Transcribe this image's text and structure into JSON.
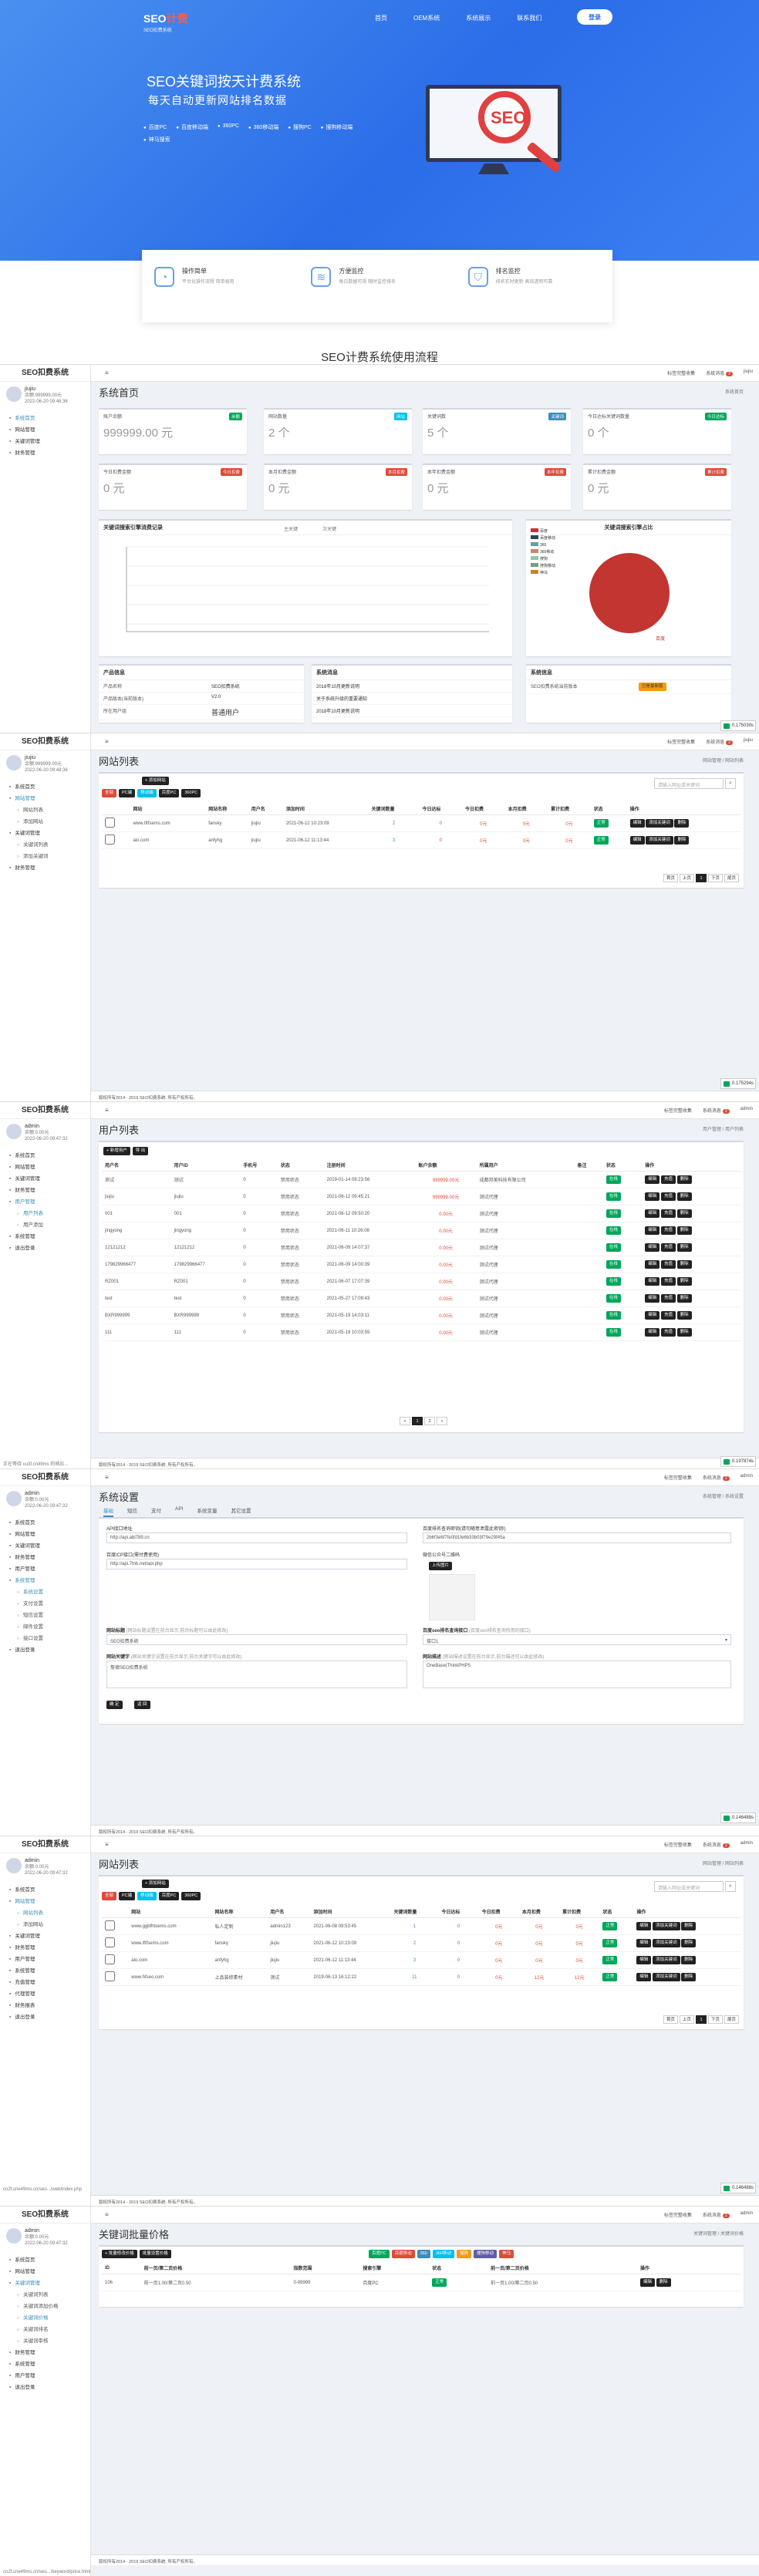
{
  "landing": {
    "logo_main": "SEO",
    "logo_accent": "计费",
    "logo_sub": "SEO扣费系统",
    "nav": [
      "首页",
      "OEM系统",
      "系统展示",
      "联系我们"
    ],
    "login_button": "登录",
    "title": "SEO关键词按天计费系统",
    "subtitle": "每天自动更新网站排名数据",
    "features": [
      "百度PC",
      "百度移动端",
      "360PC",
      "360移动端",
      "搜狗PC",
      "搜狗移动端",
      "神马搜索"
    ],
    "seo_text": "SEO",
    "services": [
      {
        "title": "操作简单",
        "desc": "平台化操作流程 简单易用",
        "icon": "gauge-icon"
      },
      {
        "title": "方便监控",
        "desc": "每日数据可视 随时监控排名",
        "icon": "layers-icon"
      },
      {
        "title": "排名监控",
        "desc": "排名实时更新 高效透明可靠",
        "icon": "shield-icon"
      }
    ],
    "flow_title": "SEO计费系统使用流程"
  },
  "common": {
    "brand": "SEO扣费系统",
    "footer": "版权所有2014 - 2019 SEO扣费系统. 所有产权所有。",
    "chip_time": "0.040266s",
    "user_status": "在线",
    "menu_main": [
      "系统首页",
      "网站管理",
      "关键词管理",
      "财务管理",
      "用户管理",
      "系统管理",
      "退出登录"
    ]
  },
  "p1": {
    "user": "jiujiu",
    "user_info": "余额:999999.00元",
    "user_date": "2022-06-20 09:48:36",
    "menu": [
      "系统首页",
      "网站管理",
      "关键词管理",
      "财务管理"
    ],
    "top": [
      "标签完整收集",
      "系统消息",
      "jiujiu"
    ],
    "title": "系统首页",
    "bc": "系统首页",
    "stats": [
      {
        "label": "账户余额",
        "value": "999999.00 元",
        "tag": "余额"
      },
      {
        "label": "网站数量",
        "value": "2 个",
        "tag": "网站"
      },
      {
        "label": "关键词数",
        "value": "5 个",
        "tag": "关键词"
      },
      {
        "label": "今日达标关键词数量",
        "value": "0 个",
        "tag": "今日达标"
      },
      {
        "label": "今日扣费金额",
        "value": "0 元",
        "tag": "今日扣费"
      },
      {
        "label": "本月扣费金额",
        "value": "0 元",
        "tag": "本月扣费"
      },
      {
        "label": "本年扣费金额",
        "value": "0 元",
        "tag": "本年扣费"
      },
      {
        "label": "累计扣费金额",
        "value": "0 元",
        "tag": "累计扣费"
      }
    ],
    "chart_title": "关键词搜索引擎消费记录",
    "chart_legend": [
      "主关键",
      "次关键"
    ],
    "pie_title": "关键词搜索引擎占比",
    "pie_legend": [
      "百度",
      "百度移动",
      "360",
      "360移动",
      "搜狗",
      "搜狗移动",
      "神马"
    ],
    "pie_label": "百度",
    "product_title": "产品信息",
    "product": [
      [
        "产品名称",
        "SEO扣费系统"
      ],
      [
        "产品版本(当前版本)",
        "V2.0"
      ],
      [
        "所在用户组",
        "普通用户"
      ]
    ],
    "msg_title": "系统消息",
    "msgs": [
      "2018年10月更新说明",
      "关于系统升级的重要通知",
      "2018年10月更新说明"
    ],
    "sys_title": "系统信息",
    "sys": [
      [
        "SEO扣费系统当前版本",
        "已是最新版"
      ]
    ],
    "chip": "0.175030s"
  },
  "p2": {
    "user": "jiujiu",
    "user_info": "余额:999999.00元",
    "user_date": "2022-06-20 09:48:36",
    "menu": [
      "系统首页",
      "网站管理",
      "网站列表",
      "添加网站",
      "关键词管理",
      "关键词列表",
      "添加关键词",
      "财务管理"
    ],
    "title": "网站列表",
    "bc": "网站管理 / 网站列表",
    "add_btn": "+ 添加网站",
    "filters": [
      "全部",
      "PC端",
      "移动端",
      "百度PC",
      "360PC"
    ],
    "search_ph": "请输入网址或关键词",
    "cols": [
      "",
      "网站",
      "网站名称",
      "用户名",
      "添加时间",
      "关键词数量",
      "今日达标",
      "今日扣费",
      "本月扣费",
      "累计扣费",
      "状态",
      "操作"
    ],
    "rows": [
      [
        "",
        "www.tftfsems.com",
        "fansky",
        "jiujiu",
        "2021-06-12 10:23:09",
        "2",
        "0",
        "0元",
        "0元",
        "正常"
      ],
      [
        "",
        "aio.com",
        "anfyhg",
        "jiujiu",
        "2021-06-12 11:13:44",
        "3",
        "0",
        "0元",
        "0元",
        "正常"
      ]
    ],
    "row_btns": [
      "编辑",
      "添加关键词",
      "删除"
    ],
    "pages": [
      "首页",
      "上页",
      "1",
      "下页",
      "尾页"
    ],
    "chip": "0.175294s"
  },
  "p3": {
    "user": "admin",
    "user_info": "余额:0.00元",
    "user_date": "2022-06-20 09:47:32",
    "menu": [
      "系统首页",
      "网站管理",
      "关键词管理",
      "财务管理",
      "用户管理",
      "用户列表",
      "用户添加",
      "系统管理",
      "退出登录"
    ],
    "title": "用户列表",
    "bc": "用户管理 / 用户列表",
    "btns": [
      "+ 新增用户",
      "导 出"
    ],
    "cols": [
      "用户名",
      "用户ID",
      "手机号",
      "状态",
      "注册时间",
      "账户余额",
      "所属用户",
      "备注",
      "状态",
      "操作"
    ],
    "rows": [
      [
        "测试",
        "测试",
        "0",
        "禁用状态",
        "2019-01-14 09:23:56",
        "999999.00元",
        "成都邦美科技有限公司"
      ],
      [
        "jiujiu",
        "jiujiu",
        "0",
        "禁用状态",
        "2021-06-12 09:45:21",
        "999999.00元",
        "测试代理"
      ],
      [
        "001",
        "001",
        "0",
        "禁用状态",
        "2021-06-12 09:50:20",
        "0.00元",
        "测试代理"
      ],
      [
        "jingyong",
        "jingyong",
        "0",
        "禁用状态",
        "2021-06-11 10:26:08",
        "0.00元",
        "测试代理"
      ],
      [
        "12121212",
        "12121212",
        "0",
        "禁用状态",
        "2021-06-09 14:07:37",
        "0.00元",
        "测试代理"
      ],
      [
        "179829966477",
        "179829966477",
        "0",
        "禁用状态",
        "2021-06-09 14:00:39",
        "0.00元",
        "测试代理"
      ],
      [
        "RZ001",
        "RZ001",
        "0",
        "禁用状态",
        "2021-06-07 17:07:39",
        "0.00元",
        "测试代理"
      ],
      [
        "test",
        "test",
        "0",
        "禁用状态",
        "2021-05-27 17:09:43",
        "0.00元",
        "测试代理"
      ],
      [
        "BXR999999",
        "BXR999999",
        "0",
        "禁用状态",
        "2021-05-19 14:03:11",
        "0.00元",
        "测试代理"
      ],
      [
        "111",
        "111",
        "0",
        "禁用状态",
        "2021-05-19 10:03:55",
        "0.00元",
        "测试代理"
      ]
    ],
    "row_btns": [
      "编辑",
      "充值",
      "删除"
    ],
    "pages": [
      "«",
      "1",
      "2",
      "»"
    ],
    "status_url": "正在等待 vu3f.cn49ms 的响应...",
    "chip": "0.197874s"
  },
  "p4": {
    "user": "admin",
    "user_info": "余额:0.00元",
    "user_date": "2022-06-20 09:47:32",
    "menu": [
      "系统首页",
      "网站管理",
      "关键词管理",
      "财务管理",
      "用户管理",
      "系统管理",
      "系统设置",
      "支付设置",
      "短信设置",
      "邮件设置",
      "接口设置",
      "退出登录"
    ],
    "title": "系统设置",
    "bc": "系统管理 / 系统设置",
    "tabs": [
      "基础",
      "短信",
      "支付",
      "API",
      "系统变量",
      "其它设置"
    ],
    "f1_label": "API接口地址",
    "f1_value": "http://api.abl789.cn",
    "f2_label": "百度排名查询密钥(请勿随意泄露此密钥!)",
    "f2_value": "2b6f3e6f7fe0fd1fe6b33b03f79e29f45a",
    "f3_label": "百度ICP接口(需付费使用)",
    "f3_value": "http://api.7tnb.net/api.php",
    "f4_label": "微信公众号二维码",
    "upload_btn": "上传图片",
    "f5_label": "网站标题",
    "f5_hint": "(网站标题设置在前台显示,前台标题可以由此修改)",
    "f5_value": "SEO扣费系统",
    "f6_label": "百度seo排名查询接口",
    "f6_hint": "(百度seo排名查询所用的接口)",
    "f6_value": "接口1",
    "f7_label": "网站关键字",
    "f7_hint": "(网站关键字设置在前台显示,前台关键字可以由此修改)",
    "f7_value": "詹德SEO扣费系统",
    "f8_label": "网站描述",
    "f8_hint": "(网站描述设置在前台显示,前台描述可以由此修改)",
    "f8_value": "OneBase|ThinkPHP5",
    "btns": [
      "确 定",
      "返 回"
    ],
    "chip": "0.146488s"
  },
  "p5": {
    "user": "admin",
    "user_info": "余额:0.00元",
    "user_date": "2022-06-20 09:47:32",
    "menu": [
      "系统首页",
      "网站管理",
      "网站列表",
      "添加网站",
      "关键词管理",
      "财务管理",
      "用户管理",
      "系统管理",
      "充值管理",
      "代理管理",
      "财务报表",
      "退出登录"
    ],
    "title": "网站列表",
    "bc": "网站管理 / 网站列表",
    "add_btn": "+ 添加网站",
    "filters": [
      "全部",
      "PC端",
      "移动端",
      "百度PC",
      "360PC"
    ],
    "search_ph": "请输入网址或关键词",
    "cols": [
      "",
      "网站",
      "网站名称",
      "用户名",
      "添加时间",
      "关键词数量",
      "今日达标",
      "今日扣费",
      "本月扣费",
      "累计扣费",
      "状态",
      "操作"
    ],
    "rows": [
      [
        "",
        "www.ggbfhtsems.com",
        "私人定制",
        "admin123",
        "2021-06-08 09:53:45",
        "1",
        "0",
        "0元",
        "0元",
        "正常"
      ],
      [
        "",
        "www.tftfsems.com",
        "fansky",
        "jiujiu",
        "2021-06-12 10:23:09",
        "2",
        "0",
        "0元",
        "0元",
        "正常"
      ],
      [
        "",
        "aio.com",
        "anfyhg",
        "jiujiu",
        "2021-06-12 11:13:44",
        "3",
        "0",
        "0元",
        "0元",
        "正常"
      ],
      [
        "",
        "www.hfseo.com",
        "上品装修素材",
        "测试",
        "2019-06-13 16:12:22",
        "11",
        "0",
        "0元",
        "12元",
        "正常"
      ]
    ],
    "row_btns": [
      "编辑",
      "添加关键词",
      "删除"
    ],
    "pages": [
      "首页",
      "上页",
      "1",
      "下页",
      "尾页"
    ],
    "status_url": "cn2f.cne49ms.cn/seo.../web/index.php",
    "chip": "0.146488s"
  },
  "p6": {
    "user": "admin",
    "user_info": "余额:0.00元",
    "user_date": "2022-06-20 09:47:32",
    "menu": [
      "系统首页",
      "网站管理",
      "关键词管理",
      "关键词列表",
      "关键词添加价格",
      "关键词价格",
      "关键词排名",
      "关键词审核",
      "财务管理",
      "系统管理",
      "用户管理",
      "退出登录"
    ],
    "title": "关键词批量价格",
    "bc": "关键词管理 / 关键词价格",
    "btns": [
      "+ 批量修改价格",
      "批量设置价格"
    ],
    "tags": [
      "百度PC",
      "百度移动",
      "360",
      "360移动",
      "搜狗",
      "搜狗移动",
      "神马"
    ],
    "cols": [
      "ID",
      "前一页/第二页价格",
      "指数范围",
      "搜索引擎",
      "状态",
      "前一页/第二页价格",
      "操作"
    ],
    "rows": [
      [
        "106",
        "前一页1.00/第二页0.50",
        "0-99999",
        "百度PC",
        "正常",
        "前一页1.00/第二页0.50"
      ]
    ],
    "row_btns": [
      "编辑",
      "删除"
    ],
    "status_url": "cn2f.cne49ms.cn/seo.../keyword/price.html",
    "chip": "0.146488s"
  }
}
